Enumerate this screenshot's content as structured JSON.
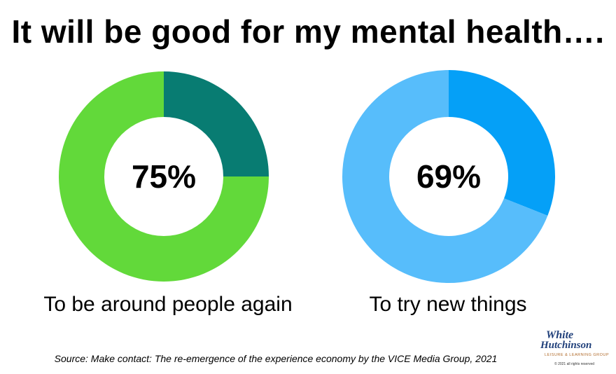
{
  "title": "It will be good for my mental health….",
  "chart_data": [
    {
      "type": "pie",
      "style": "donut",
      "center_label": "75%",
      "caption": "To be around people again",
      "slices": [
        {
          "value": 75,
          "color": "#62d93a"
        },
        {
          "value": 25,
          "color": "#087c72"
        }
      ]
    },
    {
      "type": "pie",
      "style": "donut",
      "center_label": "69%",
      "caption": "To try new things",
      "slices": [
        {
          "value": 69,
          "color": "#57bdfb"
        },
        {
          "value": 31,
          "color": "#05a0f7"
        }
      ]
    }
  ],
  "source": "Source: Make contact: The re-emergence of the experience economy by the VICE Media Group, 2021",
  "logo": {
    "line1": "White",
    "line2": "Hutchinson",
    "line3": "LEISURE & LEARNING GROUP",
    "line4": "© 2021 all rights reserved"
  }
}
